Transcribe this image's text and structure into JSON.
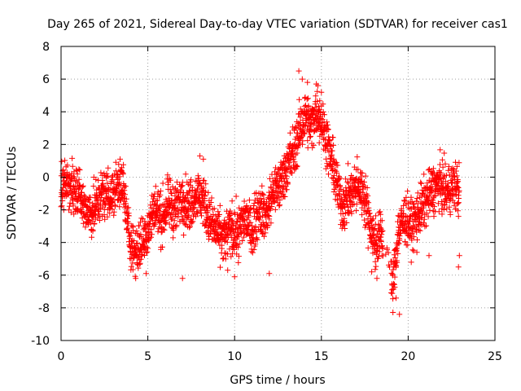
{
  "chart_data": {
    "type": "scatter",
    "title": "Day 265 of 2021, Sidereal Day-to-day VTEC variation (SDTVAR) for receiver cas1",
    "xlabel": "GPS time / hours",
    "ylabel": "SDTVAR / TECUs",
    "xlim": [
      0,
      25
    ],
    "ylim": [
      -10,
      8
    ],
    "xticks": [
      0,
      5,
      10,
      15,
      20,
      25
    ],
    "yticks": [
      -10,
      -8,
      -6,
      -4,
      -2,
      0,
      2,
      4,
      6,
      8
    ],
    "xtick_labels": [
      "0",
      "5",
      "10",
      "15",
      "20",
      "25"
    ],
    "ytick_labels": [
      "-10",
      "-8",
      "-6",
      "-4",
      "-2",
      "0",
      "2",
      "4",
      "6",
      "8"
    ],
    "grid": true,
    "marker": "+",
    "color": "#ff0000",
    "series": [
      {
        "name": "SDTVAR",
        "trend": [
          [
            0.0,
            -0.5
          ],
          [
            0.3,
            -0.3
          ],
          [
            0.6,
            -0.8
          ],
          [
            1.0,
            -1.0
          ],
          [
            1.4,
            -2.0
          ],
          [
            1.8,
            -2.2
          ],
          [
            2.2,
            -1.3
          ],
          [
            2.6,
            -0.9
          ],
          [
            3.0,
            -1.2
          ],
          [
            3.3,
            -0.2
          ],
          [
            3.6,
            -0.8
          ],
          [
            3.9,
            -3.5
          ],
          [
            4.2,
            -4.5
          ],
          [
            4.6,
            -4.2
          ],
          [
            5.0,
            -3.2
          ],
          [
            5.4,
            -1.8
          ],
          [
            5.8,
            -2.6
          ],
          [
            6.2,
            -1.6
          ],
          [
            6.6,
            -2.0
          ],
          [
            7.0,
            -1.2
          ],
          [
            7.4,
            -1.8
          ],
          [
            7.8,
            -1.0
          ],
          [
            8.2,
            -1.4
          ],
          [
            8.6,
            -2.8
          ],
          [
            9.0,
            -3.4
          ],
          [
            9.4,
            -3.8
          ],
          [
            9.8,
            -3.1
          ],
          [
            10.2,
            -3.5
          ],
          [
            10.6,
            -2.4
          ],
          [
            11.0,
            -3.4
          ],
          [
            11.4,
            -1.8
          ],
          [
            11.8,
            -2.5
          ],
          [
            12.2,
            -0.9
          ],
          [
            12.6,
            -0.5
          ],
          [
            13.0,
            0.6
          ],
          [
            13.4,
            1.5
          ],
          [
            13.8,
            3.0
          ],
          [
            14.1,
            3.8
          ],
          [
            14.4,
            3.0
          ],
          [
            14.7,
            4.2
          ],
          [
            15.0,
            3.5
          ],
          [
            15.3,
            2.2
          ],
          [
            15.6,
            1.0
          ],
          [
            15.9,
            -0.5
          ],
          [
            16.2,
            -1.8
          ],
          [
            16.6,
            -1.2
          ],
          [
            17.0,
            -0.6
          ],
          [
            17.4,
            -0.8
          ],
          [
            17.8,
            -2.8
          ],
          [
            18.1,
            -4.2
          ],
          [
            18.4,
            -3.5
          ],
          [
            18.8,
            -4.5
          ],
          [
            19.1,
            -7.0
          ],
          [
            19.4,
            -3.5
          ],
          [
            19.8,
            -2.5
          ],
          [
            20.2,
            -3.0
          ],
          [
            20.6,
            -2.2
          ],
          [
            21.0,
            -1.5
          ],
          [
            21.4,
            -0.8
          ],
          [
            21.8,
            -0.4
          ],
          [
            22.2,
            -0.9
          ],
          [
            22.6,
            -0.5
          ],
          [
            22.9,
            -0.7
          ]
        ]
      }
    ],
    "outliers": [
      [
        13.7,
        6.5
      ],
      [
        13.9,
        6.0
      ],
      [
        14.2,
        5.8
      ],
      [
        14.8,
        5.6
      ],
      [
        15.0,
        5.2
      ],
      [
        19.5,
        -8.4
      ],
      [
        19.3,
        -7.4
      ],
      [
        18.2,
        -6.2
      ],
      [
        17.9,
        -5.8
      ],
      [
        22.9,
        -5.5
      ],
      [
        22.95,
        -4.8
      ],
      [
        22.9,
        -2.4
      ],
      [
        10.0,
        -6.1
      ],
      [
        12.0,
        -5.9
      ],
      [
        4.3,
        -6.2
      ],
      [
        4.9,
        -5.9
      ],
      [
        7.0,
        -6.2
      ],
      [
        9.6,
        -5.7
      ],
      [
        3.4,
        1.1
      ],
      [
        8.0,
        1.3
      ],
      [
        8.2,
        1.1
      ],
      [
        20.5,
        -4.6
      ],
      [
        21.2,
        -4.8
      ],
      [
        16.5,
        -0.3
      ],
      [
        13.2,
        2.7
      ]
    ],
    "jitter": 1.35
  }
}
